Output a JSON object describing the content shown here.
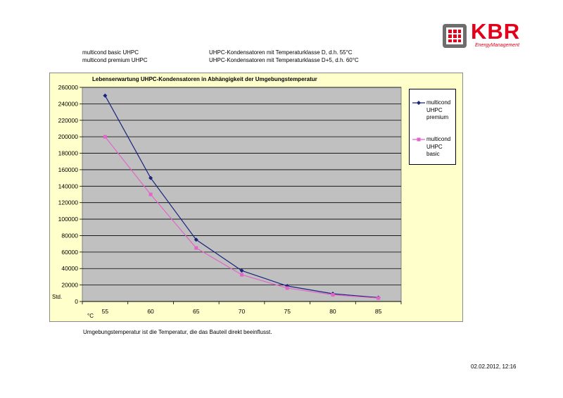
{
  "header": {
    "rows": [
      {
        "product": "multicond basic UHPC",
        "description": "UHPC-Kondensatoren mit Temperaturklasse D, d.h. 55°C"
      },
      {
        "product": "multicond premium UHPC",
        "description": "UHPC-Kondensatoren mit Temperaturklasse D+5, d.h. 60°C"
      }
    ]
  },
  "logo": {
    "text": "KBR",
    "subtitle": "EnergyManagement"
  },
  "chart_data": {
    "type": "line",
    "title": "Lebenserwartung UHPC-Kondensatoren in Abhängigkeit der Umgebungstemperatur",
    "xlabel": "°C",
    "ylabel": "Std.",
    "categories": [
      "55",
      "60",
      "65",
      "70",
      "75",
      "80",
      "85"
    ],
    "ylim": [
      0,
      260000
    ],
    "yticks": [
      0,
      20000,
      40000,
      60000,
      80000,
      100000,
      120000,
      140000,
      160000,
      180000,
      200000,
      220000,
      240000,
      260000
    ],
    "grid": true,
    "legend_position": "right",
    "series": [
      {
        "name": "multicond UHPC premium",
        "color": "#1a237e",
        "marker": "diamond",
        "values": [
          250000,
          150000,
          75000,
          37500,
          18800,
          9400,
          4700
        ]
      },
      {
        "name": "multicond UHPC basic",
        "color": "#e066c9",
        "marker": "square",
        "values": [
          200000,
          130000,
          65000,
          32500,
          16300,
          8100,
          4100
        ]
      }
    ]
  },
  "footnote": "Umgebungstemperatur ist die Temperatur, die das Bauteil direkt beeinflusst.",
  "timestamp": "02.02.2012, 12:16"
}
